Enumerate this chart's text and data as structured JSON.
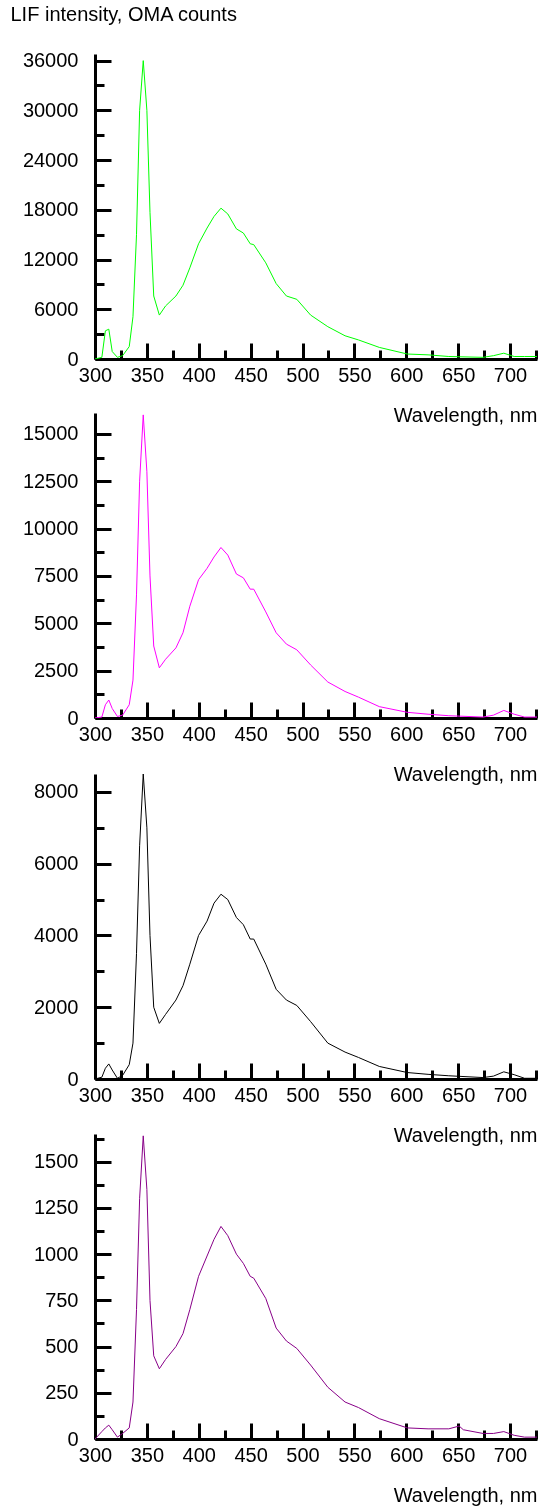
{
  "chart_data": [
    {
      "type": "line",
      "ylabel": "LIF intensity, OMA counts",
      "xlabel": "Wavelength, nm",
      "xlim": [
        300,
        726
      ],
      "ylim": [
        0,
        36800
      ],
      "xticks": [
        300,
        {
          "value": 325,
          "label": null
        },
        350,
        {
          "value": 375,
          "label": null
        },
        400,
        {
          "value": 425,
          "label": null
        },
        450,
        {
          "value": 475,
          "label": null
        },
        500,
        {
          "value": 525,
          "label": null
        },
        550,
        {
          "value": 575,
          "label": null
        },
        600,
        {
          "value": 625,
          "label": null
        },
        650,
        {
          "value": 675,
          "label": null
        },
        700,
        {
          "value": 725,
          "label": null
        }
      ],
      "yticks": [
        0,
        {
          "value": 3000,
          "label": null
        },
        6000,
        {
          "value": 9000,
          "label": null
        },
        12000,
        {
          "value": 15000,
          "label": null
        },
        18000,
        {
          "value": 21000,
          "label": null
        },
        24000,
        {
          "value": 27000,
          "label": null
        },
        30000,
        {
          "value": 33000,
          "label": null
        },
        36000
      ],
      "x": [
        300,
        306.6,
        310,
        313.3,
        316.6,
        321.6,
        326.6,
        333,
        336.6,
        340,
        343,
        346.5,
        350,
        353,
        356.6,
        362,
        368,
        378,
        384.8,
        391.4,
        399.8,
        408,
        414.7,
        421.4,
        428,
        436.3,
        443,
        449.6,
        453,
        464.6,
        474.6,
        484.5,
        494.5,
        507.8,
        524.4,
        541,
        554,
        574,
        601,
        621,
        641,
        674,
        684,
        694,
        704,
        714,
        725.6
      ],
      "series": [
        {
          "color": "#00ff00",
          "values": [
            0,
            200,
            3400,
            3600,
            900,
            200,
            400,
            1500,
            5100,
            15000,
            30000,
            36000,
            30000,
            17700,
            7600,
            5300,
            6400,
            7600,
            8900,
            11000,
            13900,
            15800,
            17200,
            18200,
            17500,
            15700,
            15200,
            13900,
            13800,
            11600,
            9100,
            7600,
            7200,
            5300,
            3900,
            2800,
            2300,
            1400,
            600,
            500,
            300,
            200,
            400,
            700,
            300,
            300,
            300
          ]
        }
      ]
    },
    {
      "type": "line",
      "xlabel": "Wavelength, nm",
      "xlim": [
        300,
        726
      ],
      "ylim": [
        0,
        16100
      ],
      "xticks": [
        300,
        {
          "value": 325,
          "label": null
        },
        350,
        {
          "value": 375,
          "label": null
        },
        400,
        {
          "value": 425,
          "label": null
        },
        450,
        {
          "value": 475,
          "label": null
        },
        500,
        {
          "value": 525,
          "label": null
        },
        550,
        {
          "value": 575,
          "label": null
        },
        600,
        {
          "value": 625,
          "label": null
        },
        650,
        {
          "value": 675,
          "label": null
        },
        700,
        {
          "value": 725,
          "label": null
        }
      ],
      "yticks": [
        0,
        {
          "value": 1250,
          "label": null
        },
        2500,
        {
          "value": 3750,
          "label": null
        },
        5000,
        {
          "value": 6250,
          "label": null
        },
        7500,
        {
          "value": 8750,
          "label": null
        },
        10000,
        {
          "value": 11250,
          "label": null
        },
        12500,
        {
          "value": 13750,
          "label": null
        },
        15000
      ],
      "x": [
        300,
        306.6,
        310,
        313.3,
        316.6,
        321.6,
        326.6,
        333,
        336.6,
        340,
        343,
        346.5,
        350,
        353,
        356.6,
        362,
        368,
        378,
        384.8,
        391.4,
        399.8,
        408,
        414.7,
        421.4,
        428,
        436.3,
        443,
        449.6,
        453,
        464.6,
        474.6,
        484.5,
        494.5,
        507.8,
        524.4,
        541,
        554,
        574,
        601,
        621,
        641,
        674,
        684,
        694,
        704,
        714,
        725.6
      ],
      "series": [
        {
          "color": "#ff00ff",
          "values": [
            0,
            50,
            700,
            950,
            500,
            80,
            150,
            700,
            2000,
            6500,
            12500,
            16000,
            13000,
            7500,
            3800,
            2650,
            3100,
            3700,
            4500,
            5900,
            7300,
            7900,
            8500,
            9000,
            8600,
            7600,
            7400,
            6800,
            6800,
            5600,
            4500,
            3900,
            3600,
            2800,
            1900,
            1400,
            1100,
            600,
            300,
            200,
            120,
            50,
            150,
            400,
            200,
            50,
            50
          ]
        }
      ]
    },
    {
      "type": "line",
      "xlabel": "Wavelength, nm",
      "xlim": [
        300,
        726
      ],
      "ylim": [
        0,
        8500
      ],
      "xticks": [
        300,
        {
          "value": 325,
          "label": null
        },
        350,
        {
          "value": 375,
          "label": null
        },
        400,
        {
          "value": 425,
          "label": null
        },
        450,
        {
          "value": 475,
          "label": null
        },
        500,
        {
          "value": 525,
          "label": null
        },
        550,
        {
          "value": 575,
          "label": null
        },
        600,
        {
          "value": 625,
          "label": null
        },
        650,
        {
          "value": 675,
          "label": null
        },
        700,
        {
          "value": 725,
          "label": null
        }
      ],
      "yticks": [
        0,
        {
          "value": 1000,
          "label": null
        },
        2000,
        {
          "value": 3000,
          "label": null
        },
        4000,
        {
          "value": 5000,
          "label": null
        },
        6000,
        {
          "value": 7000,
          "label": null
        },
        8000
      ],
      "x": [
        300,
        306.6,
        310,
        313.3,
        316.6,
        321.6,
        326.6,
        333,
        336.6,
        340,
        343,
        346.5,
        350,
        353,
        356.6,
        362,
        368,
        378,
        384.8,
        391.4,
        399.8,
        408,
        414.7,
        421.4,
        428,
        436.3,
        443,
        449.6,
        453,
        464.6,
        474.6,
        484.5,
        494.5,
        507.8,
        524.4,
        541,
        554,
        574,
        601,
        621,
        641,
        674,
        684,
        694,
        704,
        714,
        725.6
      ],
      "series": [
        {
          "color": "#000000",
          "values": [
            0,
            50,
            300,
            420,
            250,
            20,
            100,
            400,
            1000,
            3500,
            6500,
            8500,
            7000,
            4000,
            2000,
            1550,
            1800,
            2200,
            2600,
            3200,
            4000,
            4400,
            4900,
            5150,
            5000,
            4500,
            4300,
            3900,
            3900,
            3200,
            2500,
            2200,
            2050,
            1600,
            1000,
            750,
            600,
            350,
            180,
            130,
            90,
            40,
            80,
            200,
            120,
            20,
            20
          ]
        }
      ]
    },
    {
      "type": "line",
      "xlabel": "Wavelength, nm",
      "xlim": [
        300,
        726
      ],
      "ylim": [
        0,
        1650
      ],
      "xticks": [
        300,
        {
          "value": 325,
          "label": null
        },
        350,
        {
          "value": 375,
          "label": null
        },
        400,
        {
          "value": 425,
          "label": null
        },
        450,
        {
          "value": 475,
          "label": null
        },
        500,
        {
          "value": 525,
          "label": null
        },
        550,
        {
          "value": 575,
          "label": null
        },
        600,
        {
          "value": 625,
          "label": null
        },
        650,
        {
          "value": 675,
          "label": null
        },
        700,
        {
          "value": 725,
          "label": null
        }
      ],
      "yticks": [
        0,
        {
          "value": 125,
          "label": null
        },
        250,
        {
          "value": 375,
          "label": null
        },
        500,
        {
          "value": 625,
          "label": null
        },
        750,
        {
          "value": 875,
          "label": null
        },
        1000,
        {
          "value": 1125,
          "label": null
        },
        1250,
        {
          "value": 1375,
          "label": null
        },
        1500,
        {
          "value": 1625,
          "label": null
        }
      ],
      "x": [
        300,
        306.6,
        310,
        313.3,
        316.6,
        321.6,
        326.6,
        333,
        336.6,
        340,
        343,
        346.5,
        350,
        353,
        356.6,
        362,
        368,
        378,
        384.8,
        391.4,
        399.8,
        408,
        414.7,
        421.4,
        428,
        436.3,
        443,
        449.6,
        453,
        464.6,
        474.6,
        484.5,
        494.5,
        507.8,
        524.4,
        541,
        554,
        574,
        601,
        621,
        641,
        651,
        655,
        674,
        684,
        694,
        704,
        714,
        725.6
      ],
      "series": [
        {
          "color": "#880088",
          "values": [
            0,
            40,
            60,
            75,
            50,
            10,
            30,
            60,
            200,
            700,
            1300,
            1640,
            1350,
            750,
            450,
            380,
            430,
            500,
            570,
            700,
            880,
            990,
            1080,
            1150,
            1100,
            1000,
            950,
            880,
            870,
            760,
            600,
            530,
            490,
            400,
            280,
            200,
            170,
            110,
            60,
            55,
            55,
            70,
            50,
            30,
            30,
            40,
            20,
            10,
            10
          ]
        }
      ]
    }
  ]
}
